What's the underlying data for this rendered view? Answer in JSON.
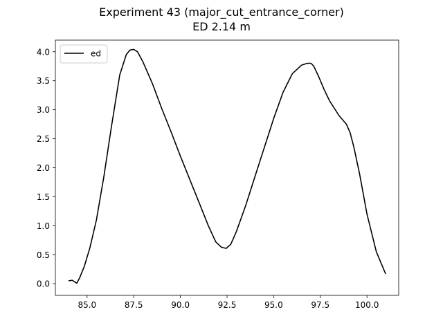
{
  "chart_data": {
    "type": "line",
    "title": "Experiment 43 (major_cut_entrance_corner)",
    "subtitle": "ED 2.14 m",
    "xlabel": "",
    "ylabel": "",
    "xlim": [
      83.3,
      101.7
    ],
    "ylim": [
      -0.2,
      4.2
    ],
    "xticks": [
      85.0,
      87.5,
      90.0,
      92.5,
      95.0,
      97.5,
      100.0
    ],
    "xtick_labels": [
      "85.0",
      "87.5",
      "90.0",
      "92.5",
      "95.0",
      "97.5",
      "100.0"
    ],
    "yticks": [
      0.0,
      0.5,
      1.0,
      1.5,
      2.0,
      2.5,
      3.0,
      3.5,
      4.0
    ],
    "ytick_labels": [
      "0.0",
      "0.5",
      "1.0",
      "1.5",
      "2.0",
      "2.5",
      "3.0",
      "3.5",
      "4.0"
    ],
    "grid": false,
    "legend_position": "top-left",
    "series": [
      {
        "name": "ed",
        "color": "#000000",
        "x": [
          84.0,
          84.2,
          84.3,
          84.45,
          84.6,
          84.85,
          85.15,
          85.5,
          85.9,
          86.3,
          86.75,
          87.1,
          87.3,
          87.5,
          87.7,
          88.0,
          88.5,
          89.0,
          89.5,
          90.0,
          90.5,
          91.0,
          91.5,
          91.9,
          92.2,
          92.45,
          92.7,
          93.0,
          93.5,
          94.0,
          94.5,
          95.0,
          95.5,
          96.0,
          96.5,
          96.8,
          97.0,
          97.15,
          97.4,
          97.7,
          98.0,
          98.5,
          98.9,
          99.1,
          99.3,
          99.6,
          100.0,
          100.5,
          101.0
        ],
        "y": [
          0.05,
          0.06,
          0.04,
          0.01,
          0.1,
          0.3,
          0.62,
          1.1,
          1.85,
          2.7,
          3.6,
          3.95,
          4.03,
          4.04,
          4.0,
          3.82,
          3.45,
          3.02,
          2.62,
          2.2,
          1.8,
          1.4,
          1.0,
          0.72,
          0.63,
          0.61,
          0.68,
          0.9,
          1.35,
          1.85,
          2.35,
          2.85,
          3.3,
          3.62,
          3.77,
          3.8,
          3.8,
          3.75,
          3.58,
          3.35,
          3.15,
          2.9,
          2.75,
          2.6,
          2.35,
          1.9,
          1.2,
          0.55,
          0.17
        ]
      }
    ]
  }
}
